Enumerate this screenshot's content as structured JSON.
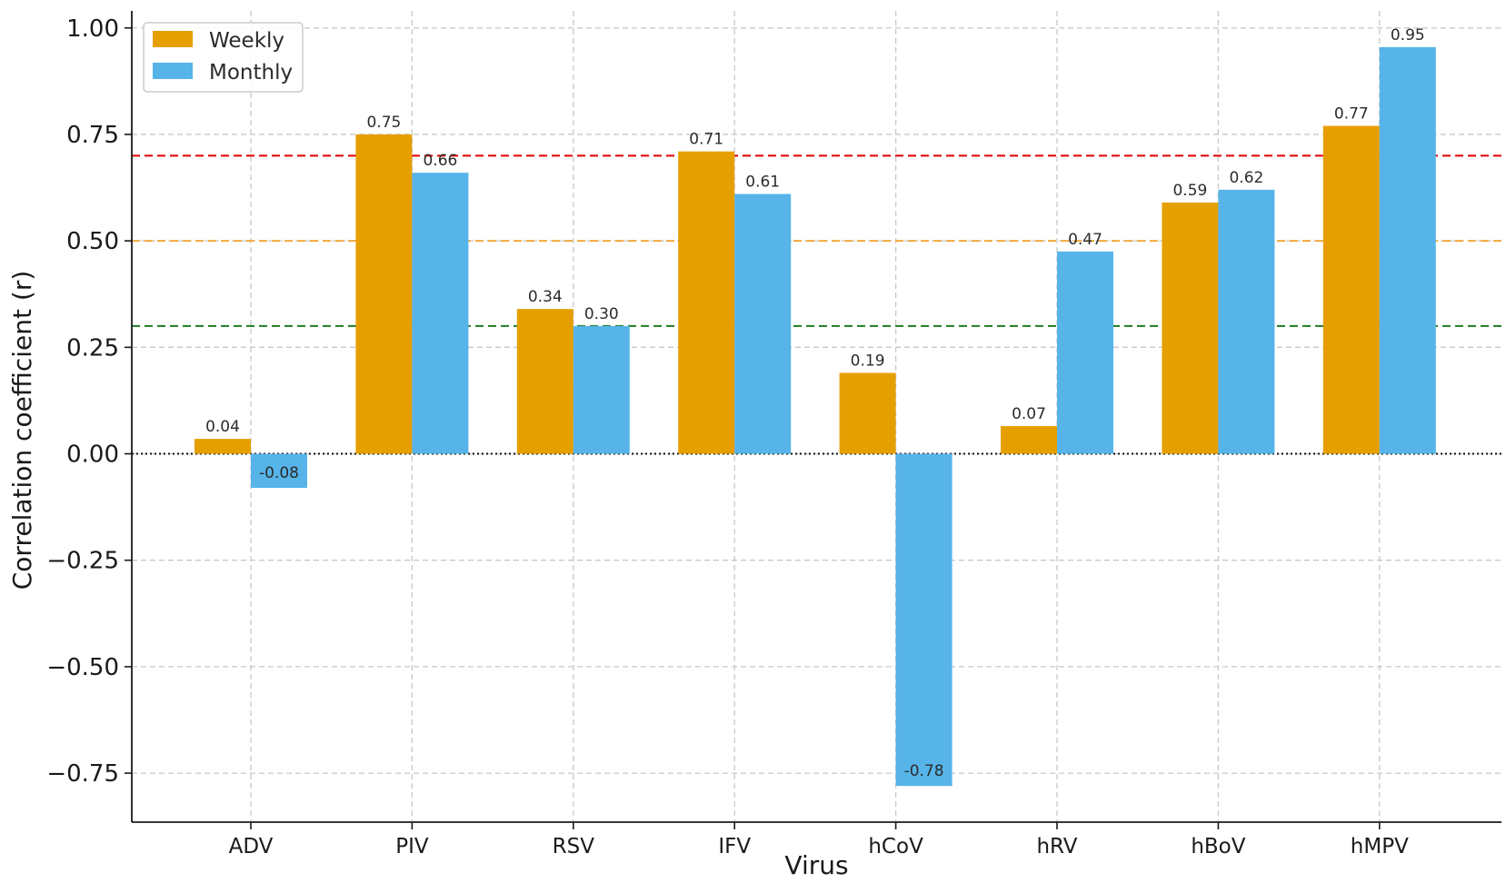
{
  "chart_data": {
    "type": "bar",
    "title": "",
    "xlabel": "Virus",
    "ylabel": "Correlation coefficient (r)",
    "ylim": [
      -0.865,
      1.04
    ],
    "yticks": [
      -0.75,
      -0.5,
      -0.25,
      0.0,
      0.25,
      0.5,
      0.75,
      1.0
    ],
    "ytick_labels": [
      "−0.75",
      "−0.50",
      "−0.25",
      "0.00",
      "0.25",
      "0.50",
      "0.75",
      "1.00"
    ],
    "grid": true,
    "categories": [
      "ADV",
      "PIV",
      "RSV",
      "IFV",
      "hCoV",
      "hRV",
      "hBoV",
      "hMPV"
    ],
    "series": [
      {
        "name": "Weekly",
        "color": "#E69F00",
        "values": [
          0.035,
          0.75,
          0.34,
          0.71,
          0.19,
          0.065,
          0.59,
          0.77
        ],
        "labels": [
          "0.04",
          "0.75",
          "0.34",
          "0.71",
          "0.19",
          "0.07",
          "0.59",
          "0.77"
        ]
      },
      {
        "name": "Monthly",
        "color": "#56B4E9",
        "values": [
          -0.08,
          0.66,
          0.3,
          0.61,
          -0.78,
          0.475,
          0.62,
          0.955
        ],
        "labels": [
          "-0.08",
          "0.66",
          "0.30",
          "0.61",
          "-0.78",
          "0.47",
          "0.62",
          "0.95"
        ]
      }
    ],
    "reference_lines": [
      {
        "value": 0.7,
        "color": "#E00000",
        "style": "dashed"
      },
      {
        "value": 0.5,
        "color": "#F2A93B",
        "style": "dashed"
      },
      {
        "value": 0.3,
        "color": "#1E7B1E",
        "style": "dashed"
      },
      {
        "value": 0.0,
        "color": "#111111",
        "style": "dotted"
      }
    ],
    "legend": {
      "position": "top-left",
      "entries": [
        "Weekly",
        "Monthly"
      ]
    }
  }
}
